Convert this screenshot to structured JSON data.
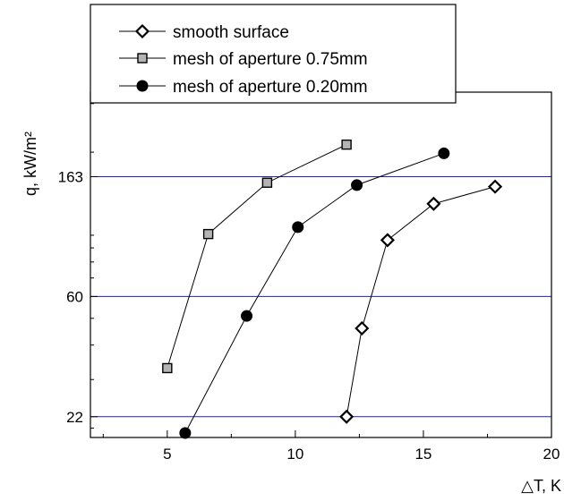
{
  "chart_data": {
    "type": "line",
    "scale_y": "log",
    "xlim": [
      2,
      20
    ],
    "ylim": [
      18.5,
      330
    ],
    "x_ticks": [
      5,
      10,
      15,
      20
    ],
    "x_tick_labels": [
      "5",
      "10",
      "15",
      "20"
    ],
    "y_ticks": [
      22,
      60,
      163
    ],
    "y_tick_labels": [
      "22",
      "60",
      "163"
    ],
    "xlabel": "△T, K",
    "ylabel": "q, kW/m²",
    "grid": "horizontal lines at y ticks",
    "legend_position": "top-left",
    "series": [
      {
        "name": "smooth surface",
        "marker": "diamond-open",
        "x": [
          12.0,
          12.6,
          13.6,
          15.4,
          17.8
        ],
        "y": [
          22,
          46,
          96,
          130,
          150
        ]
      },
      {
        "name": "mesh of aperture 0.75mm",
        "marker": "square-gray",
        "x": [
          5.0,
          6.6,
          8.9,
          12.0
        ],
        "y": [
          33,
          101,
          155,
          213
        ]
      },
      {
        "name": "mesh of aperture 0.20mm",
        "marker": "circle-filled",
        "x": [
          5.7,
          8.1,
          10.1,
          12.4,
          15.8
        ],
        "y": [
          19.2,
          51,
          107,
          152,
          198
        ]
      }
    ]
  },
  "colors": {
    "gridline": "#2020c0",
    "axis": "#000000",
    "square_fill": "#b4b4b4",
    "marker_stroke": "#000000"
  }
}
